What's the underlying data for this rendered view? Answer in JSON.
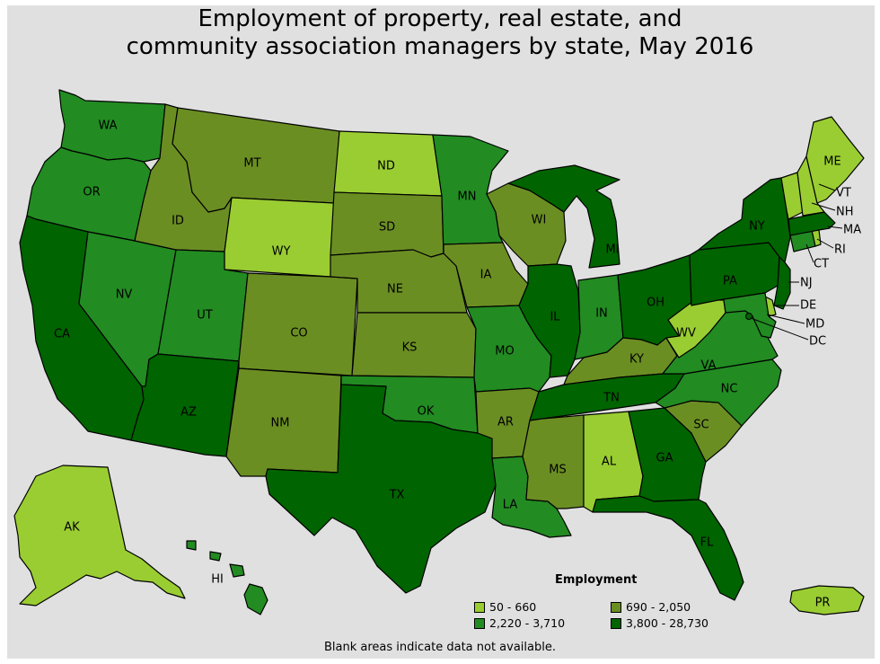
{
  "title": {
    "line1": "Employment of property, real estate, and",
    "line2": "community association managers by state, May 2016"
  },
  "legend": {
    "title": "Employment",
    "bins": [
      {
        "label": "50 - 660",
        "color": "#9acd32"
      },
      {
        "label": "690 - 2,050",
        "color": "#6b8e23"
      },
      {
        "label": "2,220 - 3,710",
        "color": "#228b22"
      },
      {
        "label": "3,800 - 28,730",
        "color": "#006400"
      }
    ]
  },
  "footnote": "Blank areas indicate data not available.",
  "states": {
    "WA": 2,
    "OR": 2,
    "CA": 3,
    "NV": 2,
    "ID": 1,
    "MT": 1,
    "WY": 0,
    "UT": 2,
    "AZ": 3,
    "CO": 1,
    "NM": 1,
    "ND": 0,
    "SD": 1,
    "NE": 1,
    "KS": 1,
    "OK": 2,
    "TX": 3,
    "MN": 2,
    "IA": 1,
    "MO": 2,
    "AR": 1,
    "LA": 2,
    "WI": 1,
    "IL": 3,
    "MI": 3,
    "IN": 2,
    "OH": 3,
    "KY": 1,
    "TN": 3,
    "MS": 1,
    "AL": 0,
    "GA": 3,
    "FL": 3,
    "SC": 1,
    "NC": 2,
    "VA": 2,
    "WV": 0,
    "PA": 3,
    "NY": 3,
    "ME": 0,
    "VT": 0,
    "NH": 0,
    "MA": 3,
    "RI": 0,
    "CT": 2,
    "NJ": 3,
    "DE": 0,
    "MD": 2,
    "DC": 3,
    "AK": 0,
    "HI": 2,
    "PR": 0
  },
  "labels": {
    "WA": "WA",
    "OR": "OR",
    "CA": "CA",
    "NV": "NV",
    "ID": "ID",
    "MT": "MT",
    "WY": "WY",
    "UT": "UT",
    "AZ": "AZ",
    "CO": "CO",
    "NM": "NM",
    "ND": "ND",
    "SD": "SD",
    "NE": "NE",
    "KS": "KS",
    "OK": "OK",
    "TX": "TX",
    "MN": "MN",
    "IA": "IA",
    "MO": "MO",
    "AR": "AR",
    "LA": "LA",
    "WI": "WI",
    "IL": "IL",
    "MI": "MI",
    "IN": "IN",
    "OH": "OH",
    "KY": "KY",
    "TN": "TN",
    "MS": "MS",
    "AL": "AL",
    "GA": "GA",
    "FL": "FL",
    "SC": "SC",
    "NC": "NC",
    "VA": "VA",
    "WV": "WV",
    "PA": "PA",
    "NY": "NY",
    "ME": "ME",
    "VT": "VT",
    "NH": "NH",
    "MA": "MA",
    "RI": "RI",
    "CT": "CT",
    "NJ": "NJ",
    "DE": "DE",
    "MD": "MD",
    "DC": "DC",
    "AK": "AK",
    "HI": "HI",
    "PR": "PR"
  }
}
